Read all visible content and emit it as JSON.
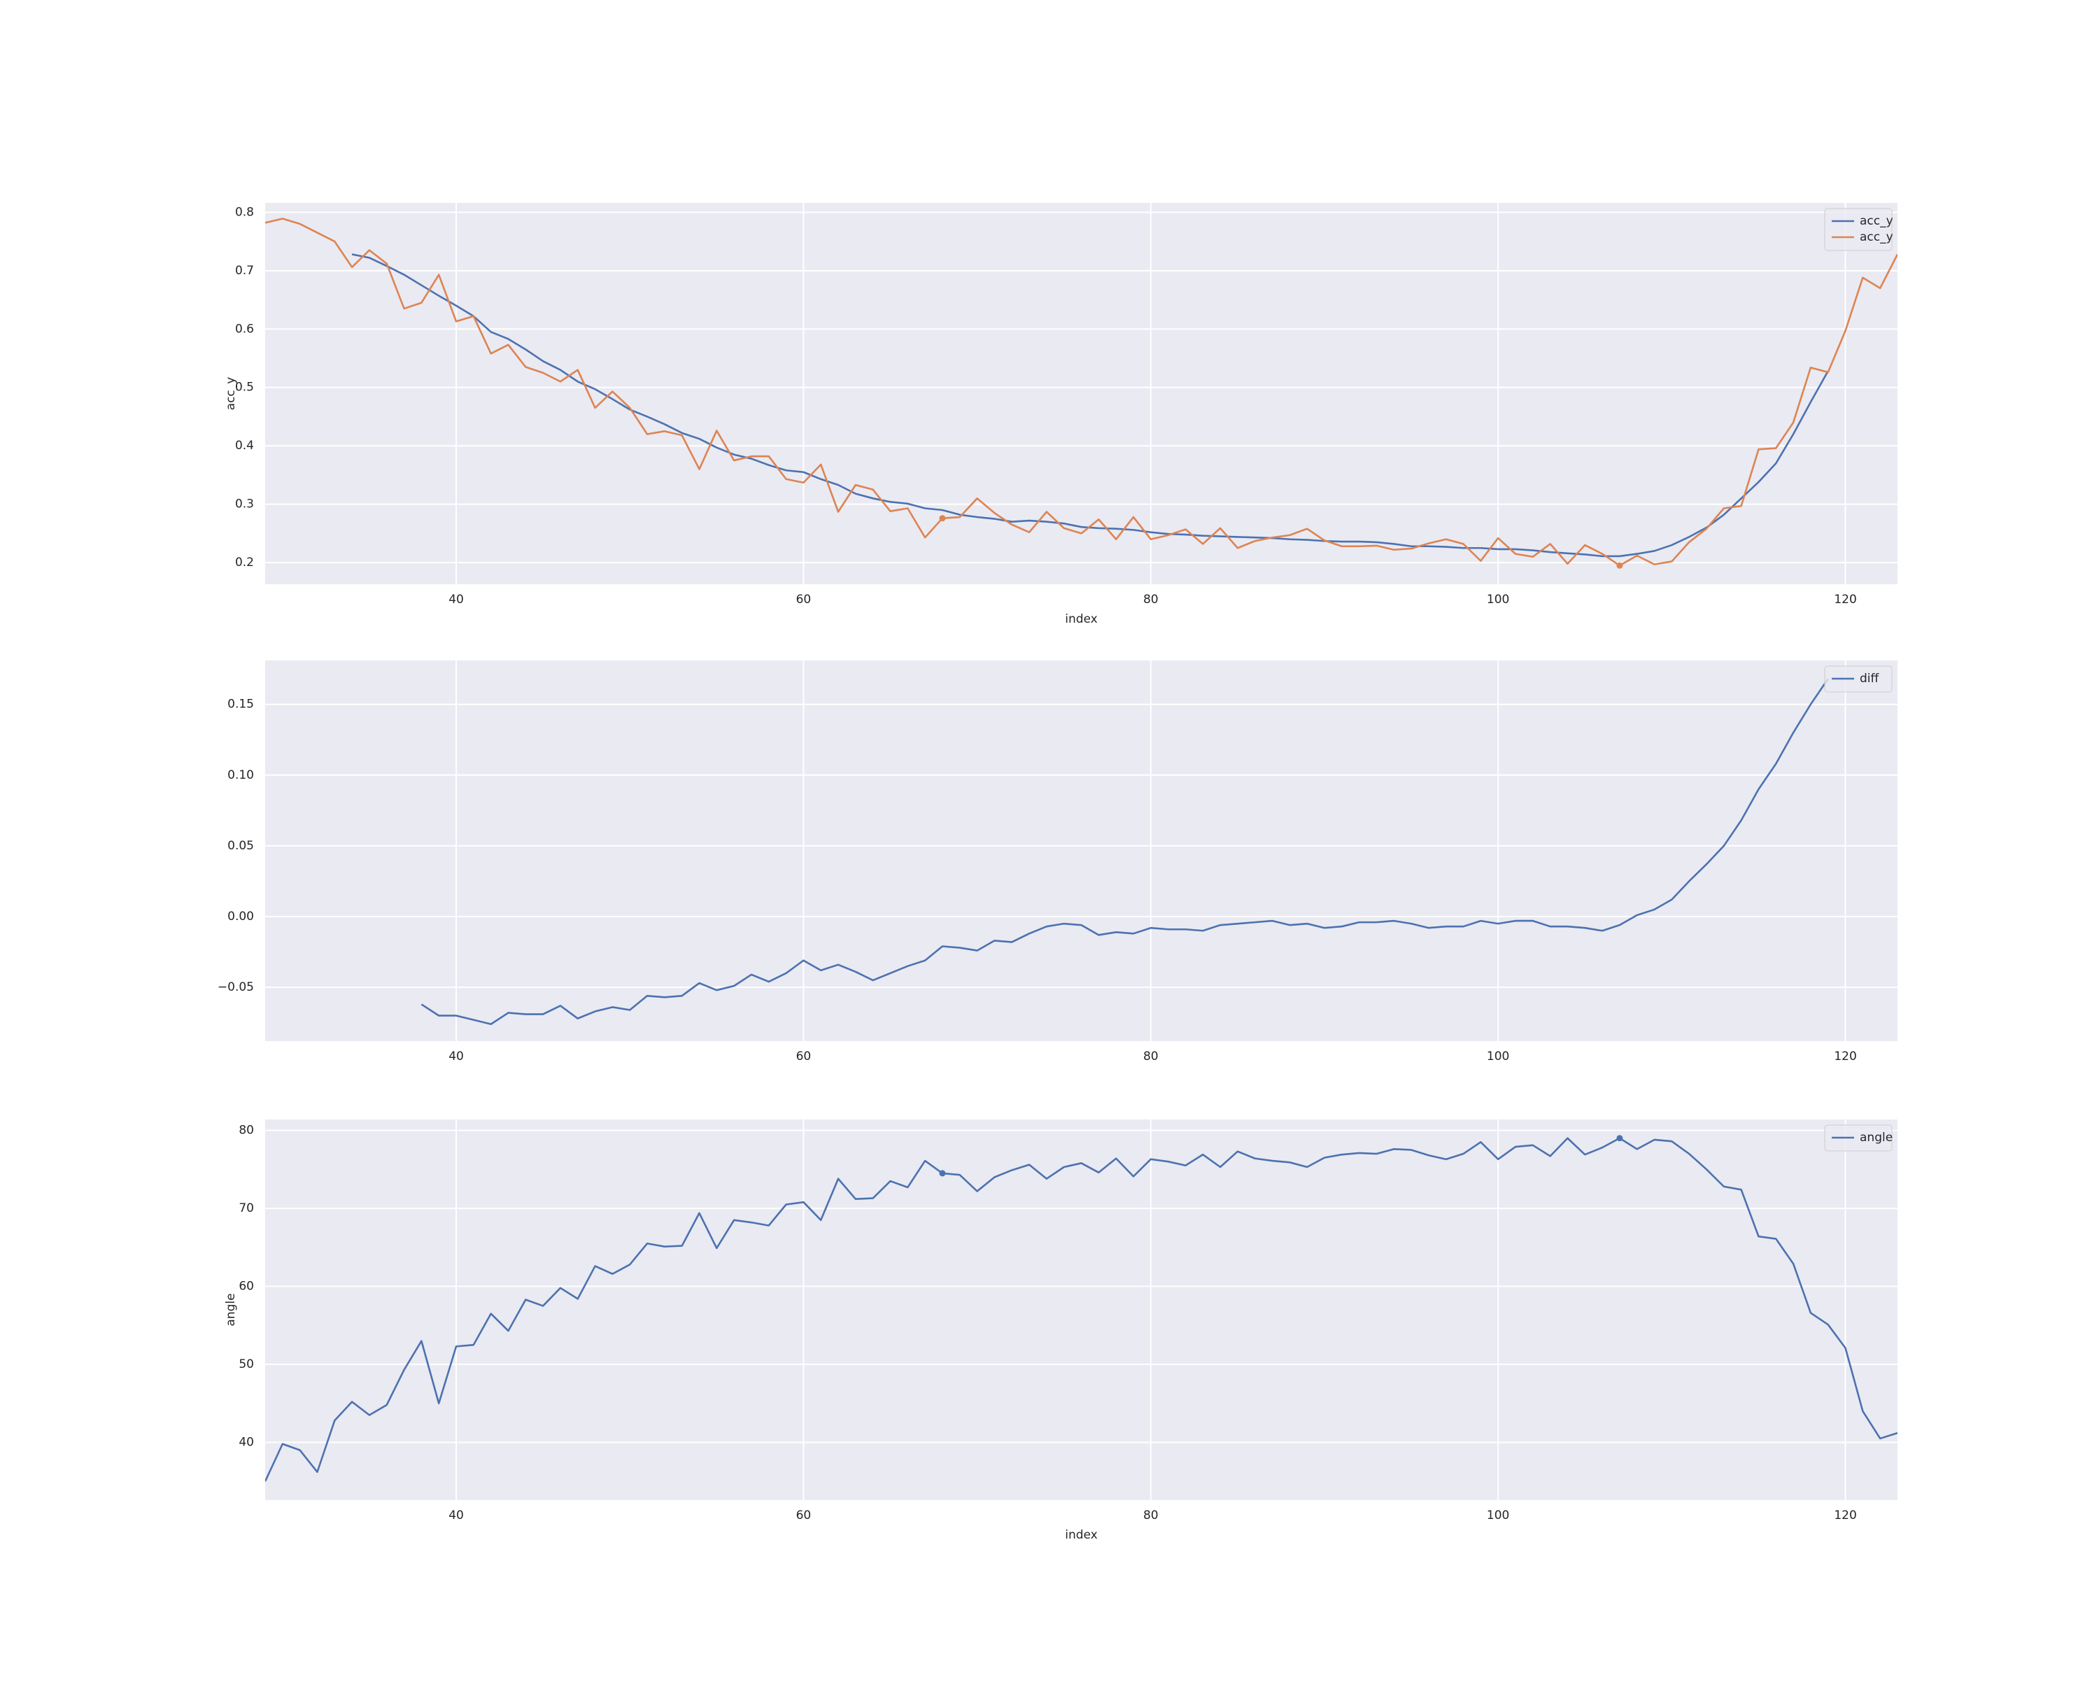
{
  "chart_data": [
    {
      "type": "line",
      "xlabel": "index",
      "ylabel": "acc_y",
      "xlim": [
        29,
        123
      ],
      "ylim": [
        0.163,
        0.816
      ],
      "xticks": [
        40,
        60,
        80,
        100,
        120
      ],
      "yticks": [
        0.2,
        0.3,
        0.4,
        0.5,
        0.6,
        0.7,
        0.8
      ],
      "grid": true,
      "legend": "upper right",
      "series": [
        {
          "name": "acc_y",
          "color": "#4c72b0",
          "x": [
            34,
            35,
            36,
            37,
            38,
            39,
            40,
            41,
            42,
            43,
            44,
            45,
            46,
            47,
            48,
            49,
            50,
            51,
            52,
            53,
            54,
            55,
            56,
            57,
            58,
            59,
            60,
            61,
            62,
            63,
            64,
            65,
            66,
            67,
            68,
            69,
            70,
            71,
            72,
            73,
            74,
            75,
            76,
            77,
            78,
            79,
            80,
            81,
            82,
            83,
            84,
            85,
            86,
            87,
            88,
            89,
            90,
            91,
            92,
            93,
            94,
            95,
            96,
            97,
            98,
            99,
            100,
            101,
            102,
            103,
            104,
            105,
            106,
            107,
            108,
            109,
            110,
            111,
            112,
            113,
            114,
            115,
            116,
            117,
            118,
            119
          ],
          "values": [
            0.728,
            0.722,
            0.708,
            0.693,
            0.675,
            0.657,
            0.64,
            0.622,
            0.595,
            0.583,
            0.565,
            0.545,
            0.53,
            0.51,
            0.497,
            0.48,
            0.462,
            0.45,
            0.437,
            0.422,
            0.412,
            0.397,
            0.385,
            0.378,
            0.367,
            0.358,
            0.355,
            0.343,
            0.333,
            0.318,
            0.31,
            0.304,
            0.301,
            0.293,
            0.29,
            0.282,
            0.278,
            0.275,
            0.27,
            0.272,
            0.27,
            0.267,
            0.261,
            0.259,
            0.258,
            0.256,
            0.252,
            0.249,
            0.248,
            0.246,
            0.245,
            0.244,
            0.243,
            0.242,
            0.24,
            0.239,
            0.237,
            0.236,
            0.236,
            0.235,
            0.232,
            0.228,
            0.228,
            0.227,
            0.225,
            0.225,
            0.223,
            0.223,
            0.221,
            0.218,
            0.216,
            0.214,
            0.211,
            0.211,
            0.215,
            0.22,
            0.23,
            0.244,
            0.26,
            0.282,
            0.31,
            0.338,
            0.37,
            0.42,
            0.475,
            0.528
          ]
        },
        {
          "name": "acc_y",
          "color": "#dd8452",
          "x": [
            29,
            30,
            31,
            32,
            33,
            34,
            35,
            36,
            37,
            38,
            39,
            40,
            41,
            42,
            43,
            44,
            45,
            46,
            47,
            48,
            49,
            50,
            51,
            52,
            53,
            54,
            55,
            56,
            57,
            58,
            59,
            60,
            61,
            62,
            63,
            64,
            65,
            66,
            67,
            68,
            69,
            70,
            71,
            72,
            73,
            74,
            75,
            76,
            77,
            78,
            79,
            80,
            81,
            82,
            83,
            84,
            85,
            86,
            87,
            88,
            89,
            90,
            91,
            92,
            93,
            94,
            95,
            96,
            97,
            98,
            99,
            100,
            101,
            102,
            103,
            104,
            105,
            106,
            107,
            108,
            109,
            110,
            111,
            112,
            113,
            114,
            115,
            116,
            117,
            118,
            119,
            120,
            121,
            122,
            123
          ],
          "values": [
            0.782,
            0.789,
            0.78,
            0.765,
            0.75,
            0.706,
            0.735,
            0.712,
            0.635,
            0.645,
            0.693,
            0.613,
            0.622,
            0.558,
            0.573,
            0.535,
            0.525,
            0.51,
            0.53,
            0.465,
            0.493,
            0.465,
            0.42,
            0.425,
            0.418,
            0.36,
            0.426,
            0.375,
            0.382,
            0.382,
            0.343,
            0.337,
            0.368,
            0.287,
            0.333,
            0.325,
            0.288,
            0.293,
            0.243,
            0.276,
            0.278,
            0.31,
            0.285,
            0.265,
            0.252,
            0.287,
            0.259,
            0.25,
            0.274,
            0.24,
            0.278,
            0.24,
            0.247,
            0.257,
            0.232,
            0.259,
            0.225,
            0.237,
            0.243,
            0.247,
            0.258,
            0.238,
            0.228,
            0.228,
            0.229,
            0.222,
            0.224,
            0.233,
            0.24,
            0.232,
            0.203,
            0.242,
            0.215,
            0.21,
            0.232,
            0.198,
            0.23,
            0.215,
            0.195,
            0.212,
            0.197,
            0.202,
            0.235,
            0.258,
            0.293,
            0.297,
            0.394,
            0.396,
            0.44,
            0.534,
            0.526,
            0.597,
            0.688,
            0.67,
            0.728
          ]
        }
      ],
      "points": {
        "x": [
          68,
          107
        ],
        "values": [
          0.276,
          0.195
        ],
        "color": "#dd8452"
      }
    },
    {
      "type": "line",
      "xlim": [
        29,
        123
      ],
      "ylim": [
        -0.088,
        0.181
      ],
      "xticks": [
        40,
        60,
        80,
        100,
        120
      ],
      "yticks": [
        {
          "value": -0.05,
          "label": "−0.05"
        },
        {
          "value": 0,
          "label": "0.00"
        },
        0.05,
        {
          "value": 0.1,
          "label": "0.10"
        },
        0.15
      ],
      "grid": true,
      "legend": "upper right",
      "series": [
        {
          "name": "diff",
          "color": "#4c72b0",
          "x": [
            38,
            39,
            40,
            41,
            42,
            43,
            44,
            45,
            46,
            47,
            48,
            49,
            50,
            51,
            52,
            53,
            54,
            55,
            56,
            57,
            58,
            59,
            60,
            61,
            62,
            63,
            64,
            65,
            66,
            67,
            68,
            69,
            70,
            71,
            72,
            73,
            74,
            75,
            76,
            77,
            78,
            79,
            80,
            81,
            82,
            83,
            84,
            85,
            86,
            87,
            88,
            89,
            90,
            91,
            92,
            93,
            94,
            95,
            96,
            97,
            98,
            99,
            100,
            101,
            102,
            103,
            104,
            105,
            106,
            107,
            108,
            109,
            110,
            111,
            112,
            113,
            114,
            115,
            116,
            117,
            118,
            119
          ],
          "values": [
            -0.062,
            -0.07,
            -0.07,
            -0.073,
            -0.076,
            -0.068,
            -0.069,
            -0.069,
            -0.063,
            -0.072,
            -0.067,
            -0.064,
            -0.066,
            -0.056,
            -0.057,
            -0.056,
            -0.047,
            -0.052,
            -0.049,
            -0.041,
            -0.046,
            -0.04,
            -0.031,
            -0.038,
            -0.034,
            -0.039,
            -0.045,
            -0.04,
            -0.035,
            -0.031,
            -0.021,
            -0.022,
            -0.024,
            -0.017,
            -0.018,
            -0.012,
            -0.007,
            -0.005,
            -0.006,
            -0.013,
            -0.011,
            -0.012,
            -0.008,
            -0.009,
            -0.009,
            -0.01,
            -0.006,
            -0.005,
            -0.004,
            -0.003,
            -0.006,
            -0.005,
            -0.008,
            -0.007,
            -0.004,
            -0.004,
            -0.003,
            -0.005,
            -0.008,
            -0.007,
            -0.007,
            -0.003,
            -0.005,
            -0.003,
            -0.003,
            -0.007,
            -0.007,
            -0.008,
            -0.01,
            -0.006,
            0.001,
            0.005,
            0.012,
            0.025,
            0.037,
            0.05,
            0.068,
            0.09,
            0.108,
            0.13,
            0.15,
            0.168
          ]
        }
      ]
    },
    {
      "type": "line",
      "xlabel": "index",
      "ylabel": "angle",
      "xlim": [
        29,
        123
      ],
      "ylim": [
        32.6,
        81.4
      ],
      "xticks": [
        40,
        60,
        80,
        100,
        120
      ],
      "yticks": [
        40,
        50,
        60,
        70,
        80
      ],
      "grid": true,
      "legend": "upper right",
      "series": [
        {
          "name": "angle",
          "color": "#4c72b0",
          "x": [
            29,
            30,
            31,
            32,
            33,
            34,
            35,
            36,
            37,
            38,
            39,
            40,
            41,
            42,
            43,
            44,
            45,
            46,
            47,
            48,
            49,
            50,
            51,
            52,
            53,
            54,
            55,
            56,
            57,
            58,
            59,
            60,
            61,
            62,
            63,
            64,
            65,
            66,
            67,
            68,
            69,
            70,
            71,
            72,
            73,
            74,
            75,
            76,
            77,
            78,
            79,
            80,
            81,
            82,
            83,
            84,
            85,
            86,
            87,
            88,
            89,
            90,
            91,
            92,
            93,
            94,
            95,
            96,
            97,
            98,
            99,
            100,
            101,
            102,
            103,
            104,
            105,
            106,
            107,
            108,
            109,
            110,
            111,
            112,
            113,
            114,
            115,
            116,
            117,
            118,
            119,
            120,
            121,
            122,
            123
          ],
          "values": [
            35.0,
            39.8,
            39.0,
            36.2,
            42.8,
            45.2,
            43.5,
            44.8,
            49.3,
            53.0,
            45.0,
            52.3,
            52.5,
            56.5,
            54.3,
            58.3,
            57.5,
            59.8,
            58.4,
            62.6,
            61.6,
            62.8,
            65.5,
            65.1,
            65.2,
            69.4,
            64.9,
            68.5,
            68.2,
            67.8,
            70.5,
            70.8,
            68.5,
            73.8,
            71.2,
            71.3,
            73.5,
            72.7,
            76.1,
            74.5,
            74.3,
            72.2,
            74.0,
            74.9,
            75.6,
            73.8,
            75.3,
            75.8,
            74.6,
            76.4,
            74.1,
            76.3,
            76.0,
            75.5,
            76.9,
            75.3,
            77.3,
            76.4,
            76.1,
            75.9,
            75.3,
            76.5,
            76.9,
            77.1,
            77.0,
            77.6,
            77.5,
            76.8,
            76.3,
            77.0,
            78.5,
            76.3,
            77.9,
            78.1,
            76.7,
            79.0,
            76.9,
            77.8,
            79.0,
            77.6,
            78.8,
            78.6,
            77.0,
            75.0,
            72.8,
            72.4,
            66.4,
            66.1,
            62.9,
            56.6,
            55.1,
            52.1,
            44.0,
            40.5,
            41.2
          ]
        }
      ],
      "points": {
        "x": [
          68,
          107
        ],
        "values": [
          74.5,
          79.0
        ],
        "color": "#4c72b0"
      }
    }
  ]
}
